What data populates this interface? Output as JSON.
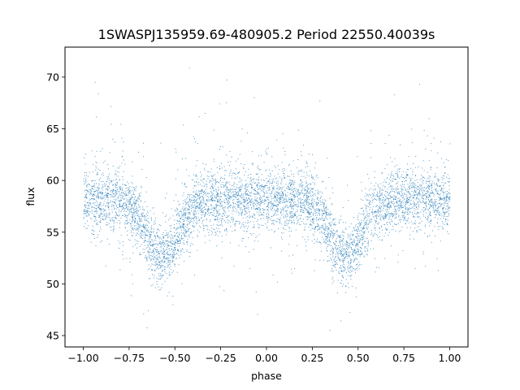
{
  "chart_data": {
    "type": "scatter",
    "title": "1SWASPJ135959.69-480905.2 Period 22550.40039s",
    "xlabel": "phase",
    "ylabel": "flux",
    "xlim": [
      -1.1,
      1.1
    ],
    "ylim": [
      43.9,
      72.9
    ],
    "x_ticks": [
      -1.0,
      -0.75,
      -0.5,
      -0.25,
      0.0,
      0.25,
      0.5,
      0.75,
      1.0
    ],
    "x_tick_labels": [
      "−1.00",
      "−0.75",
      "−0.50",
      "−0.25",
      "0.00",
      "0.25",
      "0.50",
      "0.75",
      "1.00"
    ],
    "y_ticks": [
      45,
      50,
      55,
      60,
      65,
      70
    ],
    "y_tick_labels": [
      "45",
      "50",
      "55",
      "60",
      "65",
      "70"
    ],
    "grid": false,
    "marker_color": "#1f77b4",
    "series": [
      {
        "x_range": [
          -1.0,
          1.0
        ],
        "baseline_flux": 58.2,
        "eclipses": [
          {
            "phase_center": -0.57,
            "min_flux": 52.8
          },
          {
            "phase_center": 0.43,
            "min_flux": 52.8
          }
        ]
      }
    ]
  }
}
